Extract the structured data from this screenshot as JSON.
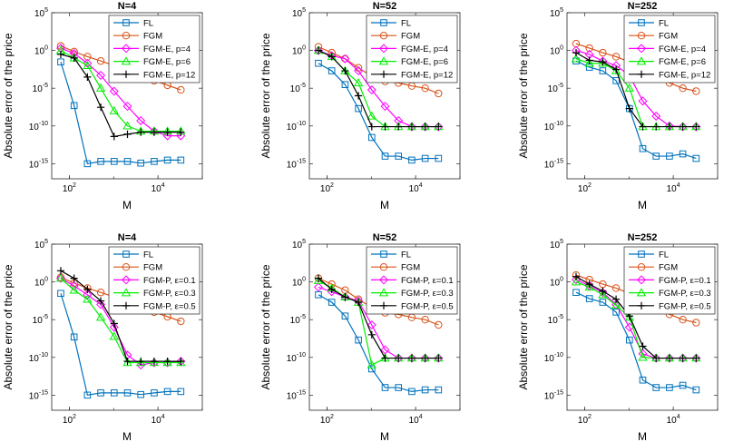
{
  "chart_data": [
    {
      "type": "line",
      "title": "N=4",
      "xlabel": "M",
      "ylabel": "Absolute error of the price",
      "xscale": "log",
      "yscale": "log",
      "xlim": [
        40,
        100000
      ],
      "ylim": [
        1e-17,
        100000.0
      ],
      "xticks": [
        "10^2",
        "10^4"
      ],
      "yticks": [
        "10^5",
        "10^0",
        "10^-5",
        "10^-10",
        "10^-15"
      ],
      "legend_location": "top-right",
      "grid": false,
      "series": [
        {
          "name": "FL",
          "color": "#0072BD",
          "marker": "square",
          "x": [
            64,
            128,
            256,
            512,
            1024,
            2048,
            4096,
            8192,
            16384,
            32768
          ],
          "y": [
            0.03,
            5e-08,
            1e-15,
            2e-15,
            2e-15,
            2e-15,
            1.2e-15,
            2e-15,
            3e-15,
            3e-15
          ]
        },
        {
          "name": "FGM",
          "color": "#D95319",
          "marker": "circle",
          "x": [
            64,
            128,
            256,
            512,
            1024,
            2048,
            4096,
            8192,
            16384,
            32768
          ],
          "y": [
            4,
            0.7,
            0.15,
            0.04,
            0.01,
            0.002,
            0.0005,
            0.0001,
            2.5e-05,
            6e-06
          ]
        },
        {
          "name": "FGM-E, p=4",
          "color": "#FF00FF",
          "marker": "diamond",
          "x": [
            64,
            128,
            256,
            512,
            1024,
            2048,
            4096,
            8192,
            16384,
            32768
          ],
          "y": [
            2,
            0.4,
            0.02,
            0.0005,
            4e-06,
            4e-08,
            5e-10,
            2e-11,
            5e-12,
            5e-12
          ]
        },
        {
          "name": "FGM-E, p=6",
          "color": "#00EE00",
          "marker": "triangle",
          "x": [
            64,
            128,
            256,
            512,
            1024,
            2048,
            4096,
            8192,
            16384,
            32768
          ],
          "y": [
            1,
            0.1,
            0.01,
            1e-05,
            1e-08,
            1e-10,
            2e-11,
            2e-11,
            2e-11,
            2e-11
          ]
        },
        {
          "name": "FGM-E, p=12",
          "color": "#000000",
          "marker": "plus",
          "x": [
            64,
            128,
            256,
            512,
            1024,
            2048,
            4096,
            8192,
            16384,
            32768
          ],
          "y": [
            0.3,
            0.1,
            0.0003,
            3e-08,
            4e-12,
            8e-12,
            1.5e-11,
            1.5e-11,
            1.5e-11,
            1.5e-11
          ]
        }
      ]
    },
    {
      "type": "line",
      "title": "N=52",
      "xlabel": "M",
      "ylabel": "Absolute error of the price",
      "xscale": "log",
      "yscale": "log",
      "xlim": [
        40,
        100000
      ],
      "ylim": [
        1e-17,
        100000.0
      ],
      "xticks": [
        "10^2",
        "10^4"
      ],
      "yticks": [
        "10^5",
        "10^0",
        "10^-5",
        "10^-10",
        "10^-15"
      ],
      "legend_location": "top-right",
      "grid": false,
      "series": [
        {
          "name": "FL",
          "color": "#0072BD",
          "marker": "square",
          "x": [
            64,
            128,
            256,
            512,
            1024,
            2048,
            4096,
            8192,
            16384,
            32768
          ],
          "y": [
            0.02,
            0.002,
            3e-05,
            2e-08,
            3e-12,
            1e-14,
            1e-14,
            3e-15,
            5e-15,
            5e-15
          ]
        },
        {
          "name": "FGM",
          "color": "#D95319",
          "marker": "circle",
          "x": [
            64,
            128,
            256,
            512,
            1024,
            2048,
            4096,
            8192,
            16384,
            32768
          ],
          "y": [
            3,
            0.5,
            0.08,
            0.005,
            0.0004,
            8e-05,
            5e-05,
            2e-05,
            1e-05,
            2e-06
          ]
        },
        {
          "name": "FGM-E, p=4",
          "color": "#FF00FF",
          "marker": "diamond",
          "x": [
            64,
            128,
            256,
            512,
            1024,
            2048,
            4096,
            8192,
            16384,
            32768
          ],
          "y": [
            1,
            0.2,
            0.08,
            0.002,
            6e-06,
            4e-08,
            5e-10,
            8e-11,
            8e-11,
            8e-11
          ]
        },
        {
          "name": "FGM-E, p=6",
          "color": "#00EE00",
          "marker": "triangle",
          "x": [
            64,
            128,
            256,
            512,
            1024,
            2048,
            4096,
            8192,
            16384,
            32768
          ],
          "y": [
            1,
            0.15,
            0.002,
            5e-05,
            2e-09,
            8e-11,
            8e-11,
            8e-11,
            8e-11,
            8e-11
          ]
        },
        {
          "name": "FGM-E, p=12",
          "color": "#000000",
          "marker": "plus",
          "x": [
            64,
            128,
            256,
            512,
            1024,
            2048,
            4096,
            8192,
            16384,
            32768
          ],
          "y": [
            1,
            0.15,
            0.002,
            1e-06,
            8e-11,
            8e-11,
            8e-11,
            8e-11,
            8e-11,
            8e-11
          ]
        }
      ]
    },
    {
      "type": "line",
      "title": "N=252",
      "xlabel": "M",
      "ylabel": "Absolute error of the price",
      "xscale": "log",
      "yscale": "log",
      "xlim": [
        40,
        100000
      ],
      "ylim": [
        1e-17,
        100000.0
      ],
      "xticks": [
        "10^2",
        "10^4"
      ],
      "yticks": [
        "10^5",
        "10^0",
        "10^-5",
        "10^-10",
        "10^-15"
      ],
      "legend_location": "top-right",
      "grid": false,
      "series": [
        {
          "name": "FL",
          "color": "#0072BD",
          "marker": "square",
          "x": [
            64,
            128,
            256,
            512,
            1024,
            2048,
            4096,
            8192,
            16384,
            32768
          ],
          "y": [
            0.04,
            0.006,
            0.002,
            0.0001,
            2e-08,
            1e-13,
            1e-14,
            1e-14,
            2e-14,
            5e-15
          ]
        },
        {
          "name": "FGM",
          "color": "#D95319",
          "marker": "circle",
          "x": [
            64,
            128,
            256,
            512,
            1024,
            2048,
            4096,
            8192,
            16384,
            32768
          ],
          "y": [
            8,
            2,
            0.5,
            0.15,
            0.03,
            0.005,
            0.0005,
            5e-05,
            1e-05,
            4e-06
          ]
        },
        {
          "name": "FGM-E, p=4",
          "color": "#FF00FF",
          "marker": "diamond",
          "x": [
            64,
            128,
            256,
            512,
            1024,
            2048,
            4096,
            8192,
            16384,
            32768
          ],
          "y": [
            1,
            0.3,
            0.04,
            0.01,
            0.0005,
            2e-07,
            2e-09,
            1e-10,
            8e-11,
            8e-11
          ]
        },
        {
          "name": "FGM-E, p=6",
          "color": "#00EE00",
          "marker": "triangle",
          "x": [
            64,
            128,
            256,
            512,
            1024,
            2048,
            4096,
            8192,
            16384,
            32768
          ],
          "y": [
            0.08,
            0.02,
            0.02,
            0.002,
            1e-05,
            8e-11,
            8e-11,
            8e-11,
            8e-11,
            8e-11
          ]
        },
        {
          "name": "FGM-E, p=12",
          "color": "#000000",
          "marker": "plus",
          "x": [
            64,
            128,
            256,
            512,
            1024,
            2048,
            4096,
            8192,
            16384,
            32768
          ],
          "y": [
            0.5,
            0.05,
            0.03,
            0.003,
            2e-08,
            8e-11,
            8e-11,
            8e-11,
            8e-11,
            8e-11
          ]
        }
      ]
    },
    {
      "type": "line",
      "title": "N=4",
      "xlabel": "M",
      "ylabel": "Absolute error of the price",
      "xscale": "log",
      "yscale": "log",
      "xlim": [
        40,
        100000
      ],
      "ylim": [
        1e-17,
        100000.0
      ],
      "xticks": [
        "10^2",
        "10^4"
      ],
      "yticks": [
        "10^5",
        "10^0",
        "10^-5",
        "10^-10",
        "10^-15"
      ],
      "legend_location": "top-right",
      "grid": false,
      "series": [
        {
          "name": "FL",
          "color": "#0072BD",
          "marker": "square",
          "x": [
            64,
            128,
            256,
            512,
            1024,
            2048,
            4096,
            8192,
            16384,
            32768
          ],
          "y": [
            0.03,
            5e-08,
            1e-15,
            2e-15,
            2e-15,
            2e-15,
            1.2e-15,
            2e-15,
            3e-15,
            3e-15
          ]
        },
        {
          "name": "FGM",
          "color": "#D95319",
          "marker": "circle",
          "x": [
            64,
            128,
            256,
            512,
            1024,
            2048,
            4096,
            8192,
            16384,
            32768
          ],
          "y": [
            4,
            0.7,
            0.15,
            0.04,
            0.01,
            0.002,
            0.0005,
            0.0001,
            2.5e-05,
            6e-06
          ]
        },
        {
          "name": "FGM-P, ε=0.1",
          "color": "#FF00FF",
          "marker": "diamond",
          "x": [
            64,
            128,
            256,
            512,
            1024,
            2048,
            4096,
            8192,
            16384,
            32768
          ],
          "y": [
            3,
            0.3,
            0.02,
            0.001,
            1e-06,
            2e-10,
            1e-11,
            2e-11,
            2e-11,
            3e-11
          ]
        },
        {
          "name": "FGM-P, ε=0.3",
          "color": "#00EE00",
          "marker": "triangle",
          "x": [
            64,
            128,
            256,
            512,
            1024,
            2048,
            4096,
            8192,
            16384,
            32768
          ],
          "y": [
            3,
            0.08,
            0.005,
            2e-05,
            6e-08,
            2e-11,
            2e-11,
            2e-11,
            2e-11,
            2e-11
          ]
        },
        {
          "name": "FGM-P, ε=0.5",
          "color": "#000000",
          "marker": "plus",
          "x": [
            64,
            128,
            256,
            512,
            1024,
            2048,
            4096,
            8192,
            16384,
            32768
          ],
          "y": [
            30,
            3,
            0.1,
            0.003,
            3e-06,
            3e-11,
            3e-11,
            3e-11,
            3e-11,
            3e-11
          ]
        }
      ]
    },
    {
      "type": "line",
      "title": "N=52",
      "xlabel": "M",
      "ylabel": "Absolute error of the price",
      "xscale": "log",
      "yscale": "log",
      "xlim": [
        40,
        100000
      ],
      "ylim": [
        1e-17,
        100000.0
      ],
      "xticks": [
        "10^2",
        "10^4"
      ],
      "yticks": [
        "10^5",
        "10^0",
        "10^-5",
        "10^-10",
        "10^-15"
      ],
      "legend_location": "top-right",
      "grid": false,
      "series": [
        {
          "name": "FL",
          "color": "#0072BD",
          "marker": "square",
          "x": [
            64,
            128,
            256,
            512,
            1024,
            2048,
            4096,
            8192,
            16384,
            32768
          ],
          "y": [
            0.02,
            0.002,
            3e-05,
            2e-08,
            3e-12,
            1e-14,
            1e-14,
            3e-15,
            5e-15,
            5e-15
          ]
        },
        {
          "name": "FGM",
          "color": "#D95319",
          "marker": "circle",
          "x": [
            64,
            128,
            256,
            512,
            1024,
            2048,
            4096,
            8192,
            16384,
            32768
          ],
          "y": [
            3,
            0.5,
            0.08,
            0.005,
            0.0004,
            8e-05,
            5e-05,
            2e-05,
            1e-05,
            2e-06
          ]
        },
        {
          "name": "FGM-P, ε=0.1",
          "color": "#FF00FF",
          "marker": "diamond",
          "x": [
            64,
            128,
            256,
            512,
            1024,
            2048,
            4096,
            8192,
            16384,
            32768
          ],
          "y": [
            0.2,
            0.05,
            0.01,
            0.003,
            2e-06,
            1e-09,
            8e-11,
            8e-11,
            8e-11,
            8e-11
          ]
        },
        {
          "name": "FGM-P, ε=0.3",
          "color": "#00EE00",
          "marker": "triangle",
          "x": [
            64,
            128,
            256,
            512,
            1024,
            2048,
            4096,
            8192,
            16384,
            32768
          ],
          "y": [
            1.5,
            0.15,
            0.01,
            0.002,
            1e-11,
            8e-11,
            8e-11,
            8e-11,
            8e-11,
            8e-11
          ]
        },
        {
          "name": "FGM-P, ε=0.5",
          "color": "#000000",
          "marker": "plus",
          "x": [
            64,
            128,
            256,
            512,
            1024,
            2048,
            4096,
            8192,
            16384,
            32768
          ],
          "y": [
            3,
            0.1,
            0.01,
            0.002,
            1e-07,
            8e-11,
            8e-11,
            8e-11,
            8e-11,
            8e-11
          ]
        }
      ]
    },
    {
      "type": "line",
      "title": "N=252",
      "xlabel": "M",
      "ylabel": "Absolute error of the price",
      "xscale": "log",
      "yscale": "log",
      "xlim": [
        40,
        100000
      ],
      "ylim": [
        1e-17,
        100000.0
      ],
      "xticks": [
        "10^2",
        "10^4"
      ],
      "yticks": [
        "10^5",
        "10^0",
        "10^-5",
        "10^-10",
        "10^-15"
      ],
      "legend_location": "top-right",
      "grid": false,
      "series": [
        {
          "name": "FL",
          "color": "#0072BD",
          "marker": "square",
          "x": [
            64,
            128,
            256,
            512,
            1024,
            2048,
            4096,
            8192,
            16384,
            32768
          ],
          "y": [
            0.04,
            0.006,
            0.002,
            0.0001,
            2e-08,
            1e-13,
            1e-14,
            1e-14,
            2e-14,
            5e-15
          ]
        },
        {
          "name": "FGM",
          "color": "#D95319",
          "marker": "circle",
          "x": [
            64,
            128,
            256,
            512,
            1024,
            2048,
            4096,
            8192,
            16384,
            32768
          ],
          "y": [
            8,
            2,
            0.5,
            0.15,
            0.03,
            0.005,
            0.0005,
            5e-05,
            1e-05,
            4e-06
          ]
        },
        {
          "name": "FGM-P, ε=0.1",
          "color": "#FF00FF",
          "marker": "diamond",
          "x": [
            64,
            128,
            256,
            512,
            1024,
            2048,
            4096,
            8192,
            16384,
            32768
          ],
          "y": [
            2,
            0.3,
            0.04,
            0.001,
            1e-06,
            3e-10,
            8e-11,
            8e-11,
            8e-11,
            8e-11
          ]
        },
        {
          "name": "FGM-P, ε=0.3",
          "color": "#00EE00",
          "marker": "triangle",
          "x": [
            64,
            128,
            256,
            512,
            1024,
            2048,
            4096,
            8192,
            16384,
            32768
          ],
          "y": [
            1,
            0.2,
            0.02,
            0.0008,
            2e-05,
            1e-10,
            8e-11,
            8e-11,
            8e-11,
            8e-11
          ]
        },
        {
          "name": "FGM-P, ε=0.5",
          "color": "#000000",
          "marker": "plus",
          "x": [
            64,
            128,
            256,
            512,
            1024,
            2048,
            4096,
            8192,
            16384,
            32768
          ],
          "y": [
            5,
            0.5,
            0.06,
            0.005,
            3e-05,
            3e-09,
            8e-11,
            8e-11,
            8e-11,
            8e-11
          ]
        }
      ]
    }
  ]
}
